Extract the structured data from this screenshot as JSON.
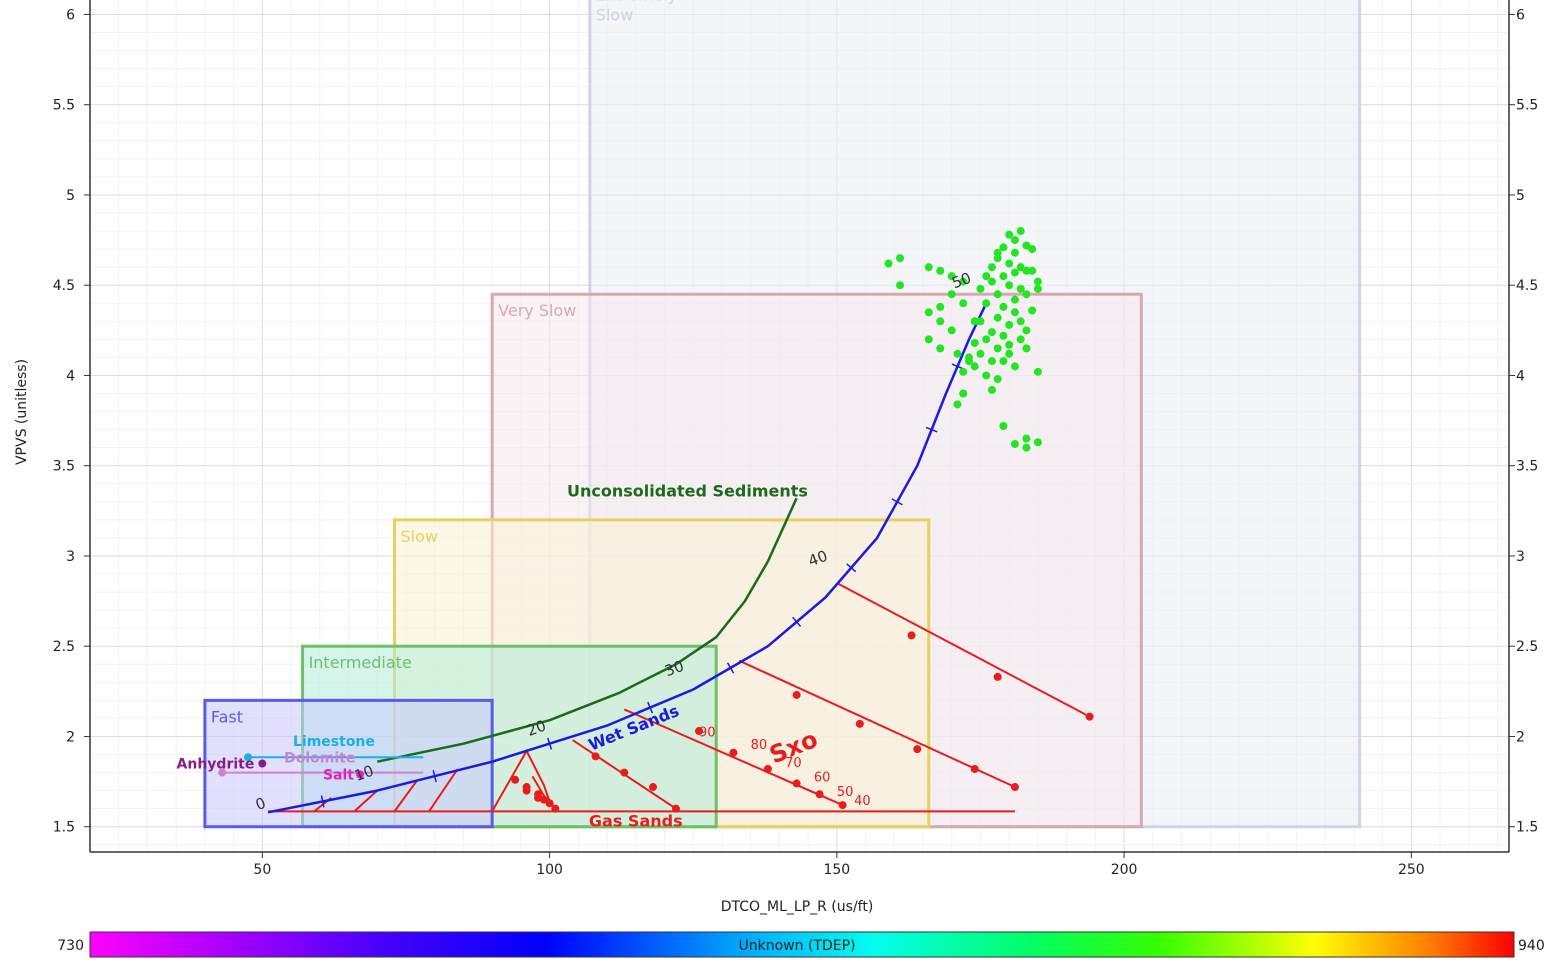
{
  "chart_data": {
    "type": "scatter",
    "xlabel": "DTCO_ML_LP_R (us/ft)",
    "ylabel": "VPVS (unitless)",
    "xlim": [
      20,
      267
    ],
    "ylim": [
      1.36,
      6.08
    ],
    "x_ticks": [
      "50",
      "100",
      "150",
      "200",
      "250"
    ],
    "y_ticks": [
      "1.5",
      "2",
      "2.5",
      "3",
      "3.5",
      "4",
      "4.5",
      "5",
      "5.5",
      "6"
    ],
    "grid": true,
    "colorbar": {
      "label": "Unknown (TDEP)",
      "min": "730",
      "max": "940"
    },
    "regions": [
      {
        "label": "Fast",
        "x": [
          40,
          90
        ],
        "y": [
          1.5,
          2.2
        ],
        "color": "#5a5af0",
        "fill": "#c8c8ff"
      },
      {
        "label": "Intermediate",
        "x": [
          57,
          129
        ],
        "y": [
          1.5,
          2.5
        ],
        "color": "#6cc06c",
        "fill": "#b4ecd8"
      },
      {
        "label": "Slow",
        "x": [
          73,
          166
        ],
        "y": [
          1.5,
          3.2
        ],
        "color": "#e8d060",
        "fill": "#faf3d4"
      },
      {
        "label": "Very Slow",
        "x": [
          90,
          203
        ],
        "y": [
          1.5,
          4.45
        ],
        "color": "#d8a8b0",
        "fill": "#f5e8ec"
      },
      {
        "label": "Extremely\nSlow",
        "x": [
          107,
          241
        ],
        "y": [
          1.5,
          6.2
        ],
        "color": "#cfd3e2",
        "fill": "#eaecf3"
      }
    ],
    "lithology": [
      {
        "label": "Limestone",
        "x": 47.5,
        "y": 1.885,
        "line_x": [
          47,
          78
        ],
        "color": "#1ab0e6"
      },
      {
        "label": "Dolomite",
        "x": 43,
        "y": 1.8,
        "line_x": [
          43,
          78
        ],
        "color": "#d080d0"
      },
      {
        "label": "Anhydrite",
        "x": 50,
        "y": 1.85,
        "line_x": [],
        "color": "#8a1a8a"
      },
      {
        "label": "Salt",
        "x": 67,
        "y": 1.79,
        "line_x": [],
        "color": "#e020c0"
      }
    ],
    "curves": {
      "unconsolidated_label": "Unconsolidated Sediments",
      "wet_sands_label": "Wet Sands",
      "gas_sands_label": "Gas Sands",
      "sxo_label": "Sxo"
    },
    "unconsolidated_sediments": [
      [
        70,
        1.86
      ],
      [
        85,
        1.96
      ],
      [
        100,
        2.09
      ],
      [
        112,
        2.24
      ],
      [
        122,
        2.4
      ],
      [
        129,
        2.55
      ],
      [
        134,
        2.75
      ],
      [
        138,
        2.97
      ],
      [
        141,
        3.18
      ],
      [
        143,
        3.32
      ]
    ],
    "wet_sands": [
      [
        51,
        1.58
      ],
      [
        70,
        1.7
      ],
      [
        90,
        1.86
      ],
      [
        110,
        2.06
      ],
      [
        125,
        2.26
      ],
      [
        138,
        2.5
      ],
      [
        148,
        2.77
      ],
      [
        157,
        3.1
      ],
      [
        164,
        3.5
      ],
      [
        169,
        3.9
      ],
      [
        173,
        4.2
      ],
      [
        176,
        4.4
      ]
    ],
    "wet_sands_porosity_labels": [
      {
        "text": "0",
        "x": 50,
        "y": 1.6
      },
      {
        "text": "10",
        "x": 68,
        "y": 1.77
      },
      {
        "text": "20",
        "x": 98,
        "y": 2.02
      },
      {
        "text": "30",
        "x": 122,
        "y": 2.35
      },
      {
        "text": "40",
        "x": 147,
        "y": 2.96
      },
      {
        "text": "50",
        "x": 172,
        "y": 4.5
      }
    ],
    "gas_sands_line": {
      "x": [
        51,
        181
      ],
      "y": 1.585
    },
    "sxo_lines": [
      {
        "points": [
          [
            59,
            1.585
          ],
          [
            62,
            1.66
          ]
        ]
      },
      {
        "points": [
          [
            66,
            1.585
          ],
          [
            70,
            1.7
          ]
        ]
      },
      {
        "points": [
          [
            73,
            1.585
          ],
          [
            77,
            1.76
          ]
        ]
      },
      {
        "points": [
          [
            79,
            1.585
          ],
          [
            84,
            1.82
          ]
        ]
      },
      {
        "points": [
          [
            90,
            1.585
          ],
          [
            96,
            1.92
          ],
          [
            99,
            1.73
          ],
          [
            100,
            1.64
          ],
          [
            101,
            1.6
          ]
        ],
        "markers": [
          [
            96,
            1.72
          ],
          [
            98,
            1.68
          ],
          [
            99,
            1.65
          ],
          [
            100,
            1.63
          ],
          [
            101,
            1.6
          ]
        ]
      },
      {
        "points": [
          [
            97,
            1.78
          ],
          [
            100,
            1.62
          ]
        ],
        "markers": [
          [
            94,
            1.76
          ],
          [
            96,
            1.7
          ],
          [
            98,
            1.66
          ]
        ]
      },
      {
        "points": [
          [
            104,
            1.98
          ],
          [
            122,
            1.6
          ]
        ],
        "markers": [
          [
            108,
            1.89
          ],
          [
            113,
            1.8
          ],
          [
            118,
            1.72
          ],
          [
            122,
            1.6
          ]
        ]
      },
      {
        "points": [
          [
            113,
            2.15
          ],
          [
            151,
            1.62
          ]
        ],
        "markers": [
          [
            126,
            2.03
          ],
          [
            132,
            1.91
          ],
          [
            138,
            1.82
          ],
          [
            143,
            1.74
          ],
          [
            147,
            1.68
          ],
          [
            151,
            1.62
          ]
        ]
      },
      {
        "points": [
          [
            133,
            2.42
          ],
          [
            181,
            1.72
          ]
        ],
        "markers": [
          [
            143,
            2.23
          ],
          [
            154,
            2.07
          ],
          [
            164,
            1.93
          ],
          [
            174,
            1.82
          ],
          [
            181,
            1.72
          ]
        ]
      },
      {
        "points": [
          [
            150,
            2.85
          ],
          [
            194,
            2.11
          ]
        ],
        "markers": [
          [
            163,
            2.56
          ],
          [
            178,
            2.33
          ],
          [
            194,
            2.11
          ]
        ]
      }
    ],
    "saturation_labels": [
      {
        "text": "90",
        "x": 126,
        "y": 2.0
      },
      {
        "text": "80",
        "x": 135,
        "y": 1.93
      },
      {
        "text": "70",
        "x": 141,
        "y": 1.83
      },
      {
        "text": "60",
        "x": 146,
        "y": 1.75
      },
      {
        "text": "50",
        "x": 150,
        "y": 1.67
      },
      {
        "text": "40",
        "x": 153,
        "y": 1.62
      }
    ],
    "points": [
      [
        180,
        4.78
      ],
      [
        181,
        4.75
      ],
      [
        182,
        4.8
      ],
      [
        179,
        4.71
      ],
      [
        183,
        4.72
      ],
      [
        178,
        4.65
      ],
      [
        181,
        4.68
      ],
      [
        184,
        4.7
      ],
      [
        180,
        4.62
      ],
      [
        182,
        4.6
      ],
      [
        179,
        4.55
      ],
      [
        181,
        4.57
      ],
      [
        183,
        4.58
      ],
      [
        177,
        4.52
      ],
      [
        180,
        4.5
      ],
      [
        182,
        4.48
      ],
      [
        185,
        4.48
      ],
      [
        178,
        4.45
      ],
      [
        181,
        4.42
      ],
      [
        183,
        4.45
      ],
      [
        176,
        4.4
      ],
      [
        179,
        4.38
      ],
      [
        181,
        4.35
      ],
      [
        184,
        4.36
      ],
      [
        175,
        4.3
      ],
      [
        178,
        4.32
      ],
      [
        180,
        4.28
      ],
      [
        182,
        4.3
      ],
      [
        177,
        4.24
      ],
      [
        179,
        4.22
      ],
      [
        174,
        4.18
      ],
      [
        176,
        4.2
      ],
      [
        178,
        4.15
      ],
      [
        180,
        4.17
      ],
      [
        173,
        4.1
      ],
      [
        175,
        4.12
      ],
      [
        179,
        4.08
      ],
      [
        181,
        4.05
      ],
      [
        176,
        4.0
      ],
      [
        178,
        3.98
      ],
      [
        172,
        3.9
      ],
      [
        177,
        3.92
      ],
      [
        183,
        4.15
      ],
      [
        185,
        4.02
      ],
      [
        171,
        3.84
      ],
      [
        179,
        3.72
      ],
      [
        183,
        3.65
      ],
      [
        185,
        3.63
      ],
      [
        181,
        3.62
      ],
      [
        183,
        3.6
      ],
      [
        159,
        4.62
      ],
      [
        161,
        4.65
      ],
      [
        166,
        4.6
      ],
      [
        168,
        4.58
      ],
      [
        170,
        4.55
      ],
      [
        172,
        4.52
      ],
      [
        161,
        4.5
      ],
      [
        170,
        4.45
      ],
      [
        172,
        4.4
      ],
      [
        168,
        4.38
      ],
      [
        166,
        4.35
      ],
      [
        168,
        4.3
      ],
      [
        170,
        4.25
      ],
      [
        166,
        4.2
      ],
      [
        168,
        4.15
      ],
      [
        171,
        4.12
      ],
      [
        173,
        4.08
      ],
      [
        174,
        4.3
      ],
      [
        175,
        4.48
      ],
      [
        176,
        4.55
      ],
      [
        177,
        4.6
      ],
      [
        178,
        4.68
      ],
      [
        184,
        4.58
      ],
      [
        185,
        4.52
      ],
      [
        183,
        4.25
      ],
      [
        182,
        4.2
      ],
      [
        180,
        4.12
      ],
      [
        177,
        4.08
      ],
      [
        174,
        4.05
      ],
      [
        172,
        4.02
      ]
    ],
    "point_color": "#22e622"
  }
}
